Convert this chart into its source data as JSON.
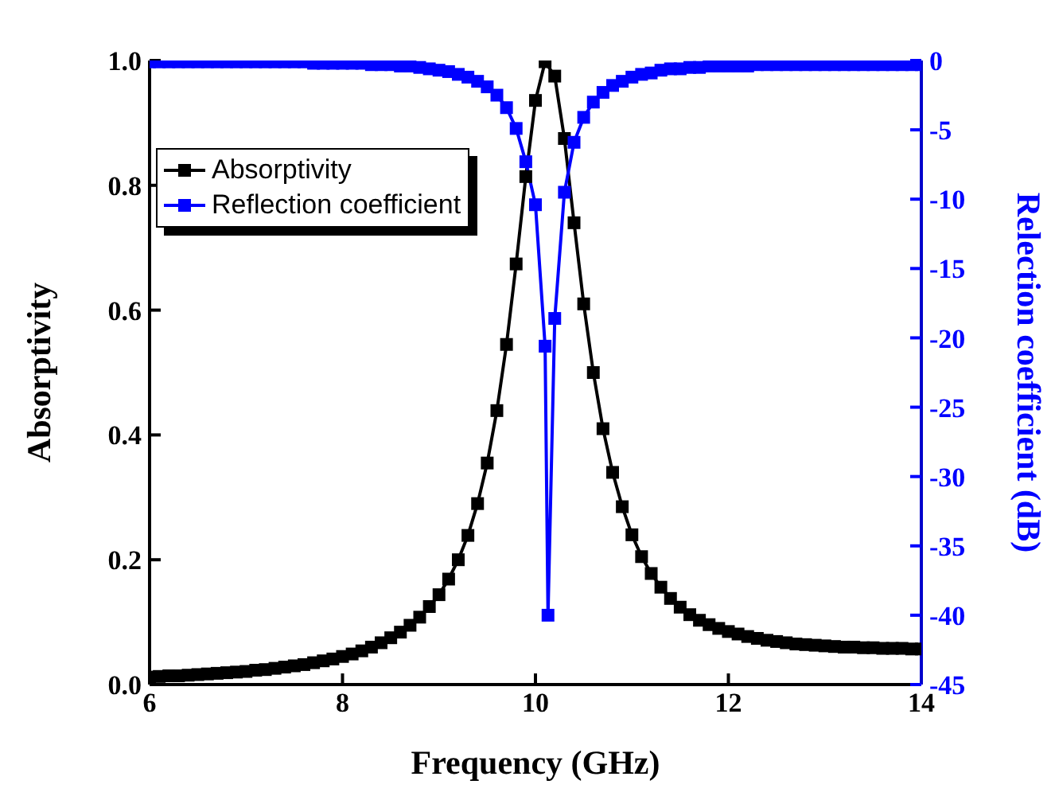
{
  "chart_data": {
    "type": "line",
    "xlabel": "Frequency (GHz)",
    "ylabel": "Absorptivity",
    "y2label": "Relection coefficient (dB)",
    "xlim": [
      6,
      14
    ],
    "xticks": [
      6,
      8,
      10,
      12,
      14
    ],
    "ylim": [
      0,
      1
    ],
    "yticks": [
      {
        "value": 0,
        "label": "0.0"
      },
      {
        "value": 0.2,
        "label": "0.2"
      },
      {
        "value": 0.4,
        "label": "0.4"
      },
      {
        "value": 0.6,
        "label": "0.6"
      },
      {
        "value": 0.8,
        "label": "0.8"
      },
      {
        "value": 1,
        "label": "1.0"
      }
    ],
    "y2lim": [
      -45,
      0
    ],
    "y2ticks": [
      0,
      -5,
      -10,
      -15,
      -20,
      -25,
      -30,
      -35,
      -40,
      -45
    ],
    "legend": "top left",
    "marker": "square",
    "line_style": "solid",
    "series": [
      {
        "name": "Absorptivity",
        "color": "#000000",
        "x": [
          6.0,
          6.1,
          6.2,
          6.3,
          6.4,
          6.5,
          6.6,
          6.7,
          6.8,
          6.9,
          7.0,
          7.1,
          7.2,
          7.3,
          7.4,
          7.5,
          7.6,
          7.7,
          7.8,
          7.9,
          8.0,
          8.1,
          8.2,
          8.3,
          8.4,
          8.5,
          8.6,
          8.7,
          8.8,
          8.9,
          9.0,
          9.1,
          9.2,
          9.3,
          9.4,
          9.5,
          9.6,
          9.7,
          9.8,
          9.9,
          10.0,
          10.1,
          10.2,
          10.3,
          10.4,
          10.5,
          10.6,
          10.7,
          10.8,
          10.9,
          11.0,
          11.1,
          11.2,
          11.3,
          11.4,
          11.5,
          11.6,
          11.7,
          11.8,
          11.9,
          12.0,
          12.1,
          12.2,
          12.3,
          12.4,
          12.5,
          12.6,
          12.7,
          12.8,
          12.9,
          13.0,
          13.1,
          13.2,
          13.3,
          13.4,
          13.5,
          13.6,
          13.7,
          13.8,
          13.9,
          14.0
        ],
        "values": [
          0.012,
          0.013,
          0.014,
          0.014,
          0.015,
          0.016,
          0.017,
          0.018,
          0.019,
          0.02,
          0.021,
          0.023,
          0.024,
          0.026,
          0.028,
          0.03,
          0.032,
          0.035,
          0.038,
          0.041,
          0.045,
          0.049,
          0.054,
          0.06,
          0.067,
          0.075,
          0.084,
          0.095,
          0.108,
          0.125,
          0.144,
          0.169,
          0.2,
          0.239,
          0.29,
          0.355,
          0.439,
          0.545,
          0.674,
          0.814,
          0.936,
          0.998,
          0.975,
          0.875,
          0.74,
          0.61,
          0.5,
          0.41,
          0.34,
          0.285,
          0.24,
          0.205,
          0.178,
          0.156,
          0.138,
          0.124,
          0.112,
          0.103,
          0.096,
          0.09,
          0.085,
          0.081,
          0.077,
          0.074,
          0.071,
          0.069,
          0.067,
          0.065,
          0.064,
          0.063,
          0.062,
          0.061,
          0.06,
          0.06,
          0.059,
          0.059,
          0.058,
          0.058,
          0.058,
          0.057,
          0.057
        ]
      },
      {
        "name": "Reflection coefficient",
        "color": "#0000ff",
        "axis": "y2",
        "x": [
          6.0,
          6.1,
          6.2,
          6.3,
          6.4,
          6.5,
          6.6,
          6.7,
          6.8,
          6.9,
          7.0,
          7.1,
          7.2,
          7.3,
          7.4,
          7.5,
          7.6,
          7.7,
          7.8,
          7.9,
          8.0,
          8.1,
          8.2,
          8.3,
          8.4,
          8.5,
          8.6,
          8.7,
          8.8,
          8.9,
          9.0,
          9.1,
          9.2,
          9.3,
          9.4,
          9.5,
          9.6,
          9.7,
          9.8,
          9.9,
          10.0,
          10.1,
          10.13,
          10.2,
          10.3,
          10.4,
          10.5,
          10.6,
          10.7,
          10.8,
          10.9,
          11.0,
          11.1,
          11.2,
          11.3,
          11.4,
          11.5,
          11.6,
          11.7,
          11.8,
          11.9,
          12.0,
          12.1,
          12.2,
          12.3,
          12.4,
          12.5,
          12.6,
          12.7,
          12.8,
          12.9,
          13.0,
          13.1,
          13.2,
          13.3,
          13.4,
          13.5,
          13.6,
          13.7,
          13.8,
          13.9,
          14.0
        ],
        "values": [
          -0.1,
          -0.1,
          -0.1,
          -0.1,
          -0.1,
          -0.1,
          -0.1,
          -0.1,
          -0.1,
          -0.1,
          -0.1,
          -0.1,
          -0.1,
          -0.1,
          -0.1,
          -0.1,
          -0.1,
          -0.2,
          -0.2,
          -0.2,
          -0.2,
          -0.2,
          -0.2,
          -0.3,
          -0.3,
          -0.3,
          -0.4,
          -0.4,
          -0.5,
          -0.6,
          -0.7,
          -0.8,
          -1.0,
          -1.2,
          -1.5,
          -1.9,
          -2.5,
          -3.4,
          -4.9,
          -7.3,
          -10.4,
          -20.6,
          -40,
          -18.6,
          -9.5,
          -5.9,
          -4.1,
          -3.0,
          -2.3,
          -1.8,
          -1.5,
          -1.2,
          -1.0,
          -0.9,
          -0.7,
          -0.6,
          -0.6,
          -0.5,
          -0.5,
          -0.4,
          -0.4,
          -0.4,
          -0.4,
          -0.4,
          -0.3,
          -0.3,
          -0.3,
          -0.3,
          -0.3,
          -0.3,
          -0.3,
          -0.3,
          -0.3,
          -0.3,
          -0.3,
          -0.3,
          -0.3,
          -0.3,
          -0.3,
          -0.3,
          -0.3,
          -0.3
        ]
      }
    ]
  }
}
